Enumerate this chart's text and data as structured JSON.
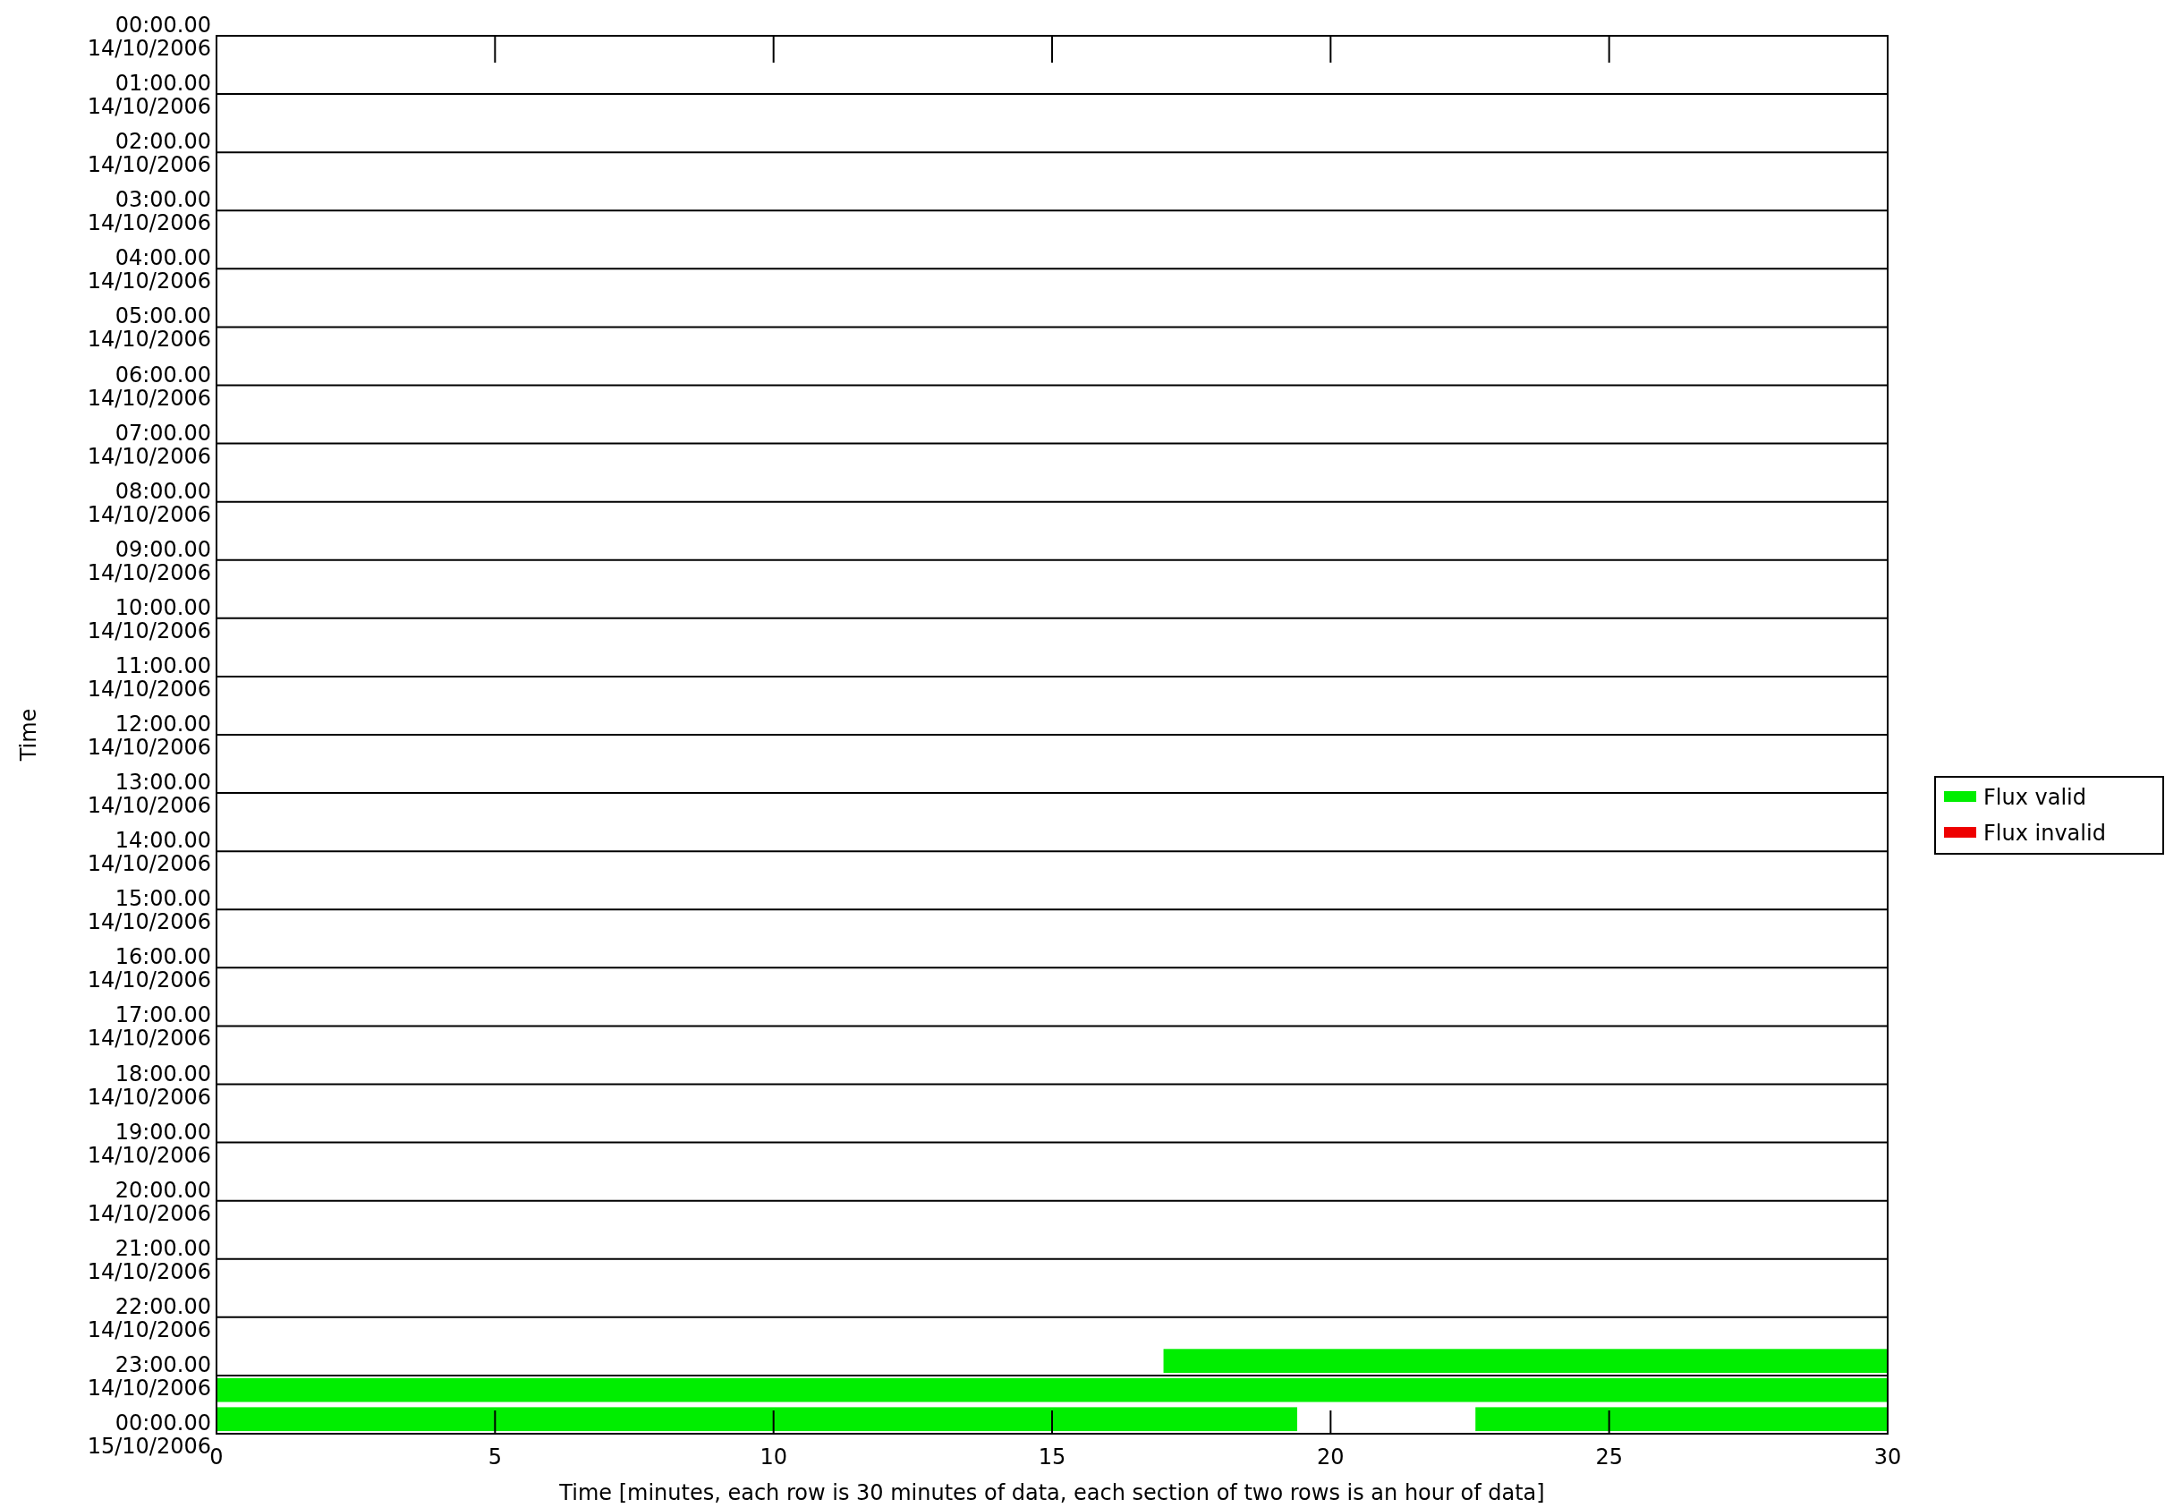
{
  "chart_data": {
    "type": "bar",
    "orientation": "horizontal",
    "xlabel": "Time [minutes, each row is 30 minutes of data, each section of two rows is an hour of data]",
    "ylabel": "Time",
    "xlim": [
      0,
      30
    ],
    "xticks": [
      0,
      5,
      10,
      15,
      20,
      25,
      30
    ],
    "ylim": [
      "2006-10-15T00:00",
      "2006-10-14T00:00"
    ],
    "yticks": [
      {
        "value": "2006-10-14T00:00",
        "label": "00:00.00\n14/10/2006"
      },
      {
        "value": "2006-10-14T01:00",
        "label": "01:00.00\n14/10/2006"
      },
      {
        "value": "2006-10-14T02:00",
        "label": "02:00.00\n14/10/2006"
      },
      {
        "value": "2006-10-14T03:00",
        "label": "03:00.00\n14/10/2006"
      },
      {
        "value": "2006-10-14T04:00",
        "label": "04:00.00\n14/10/2006"
      },
      {
        "value": "2006-10-14T05:00",
        "label": "05:00.00\n14/10/2006"
      },
      {
        "value": "2006-10-14T06:00",
        "label": "06:00.00\n14/10/2006"
      },
      {
        "value": "2006-10-14T07:00",
        "label": "07:00.00\n14/10/2006"
      },
      {
        "value": "2006-10-14T08:00",
        "label": "08:00.00\n14/10/2006"
      },
      {
        "value": "2006-10-14T09:00",
        "label": "09:00.00\n14/10/2006"
      },
      {
        "value": "2006-10-14T10:00",
        "label": "10:00.00\n14/10/2006"
      },
      {
        "value": "2006-10-14T11:00",
        "label": "11:00.00\n14/10/2006"
      },
      {
        "value": "2006-10-14T12:00",
        "label": "12:00.00\n14/10/2006"
      },
      {
        "value": "2006-10-14T13:00",
        "label": "13:00.00\n14/10/2006"
      },
      {
        "value": "2006-10-14T14:00",
        "label": "14:00.00\n14/10/2006"
      },
      {
        "value": "2006-10-14T15:00",
        "label": "15:00.00\n14/10/2006"
      },
      {
        "value": "2006-10-14T16:00",
        "label": "16:00.00\n14/10/2006"
      },
      {
        "value": "2006-10-14T17:00",
        "label": "17:00.00\n14/10/2006"
      },
      {
        "value": "2006-10-14T18:00",
        "label": "18:00.00\n14/10/2006"
      },
      {
        "value": "2006-10-14T19:00",
        "label": "19:00.00\n14/10/2006"
      },
      {
        "value": "2006-10-14T20:00",
        "label": "20:00.00\n14/10/2006"
      },
      {
        "value": "2006-10-14T21:00",
        "label": "21:00.00\n14/10/2006"
      },
      {
        "value": "2006-10-14T22:00",
        "label": "22:00.00\n14/10/2006"
      },
      {
        "value": "2006-10-14T23:00",
        "label": "23:00.00\n14/10/2006"
      },
      {
        "value": "2006-10-15T00:00",
        "label": "00:00.00\n15/10/2006"
      }
    ],
    "grid": "y",
    "legend": "right",
    "series": [
      {
        "name": "Flux valid",
        "color": "#00ee00",
        "x": [
          "2006-10-14T22:45",
          "2006-10-14T23:15",
          "2006-10-14T23:45"
        ],
        "base": [
          17,
          0,
          0
        ],
        "values": [
          13,
          30,
          19.4
        ]
      },
      {
        "name": "Flux invalid",
        "color": "#ee0000"
      },
      {
        "color": "#00ee00",
        "x": [
          "2006-10-14T23:45"
        ],
        "base": [
          22.6
        ],
        "values": [
          7.4
        ]
      }
    ]
  }
}
